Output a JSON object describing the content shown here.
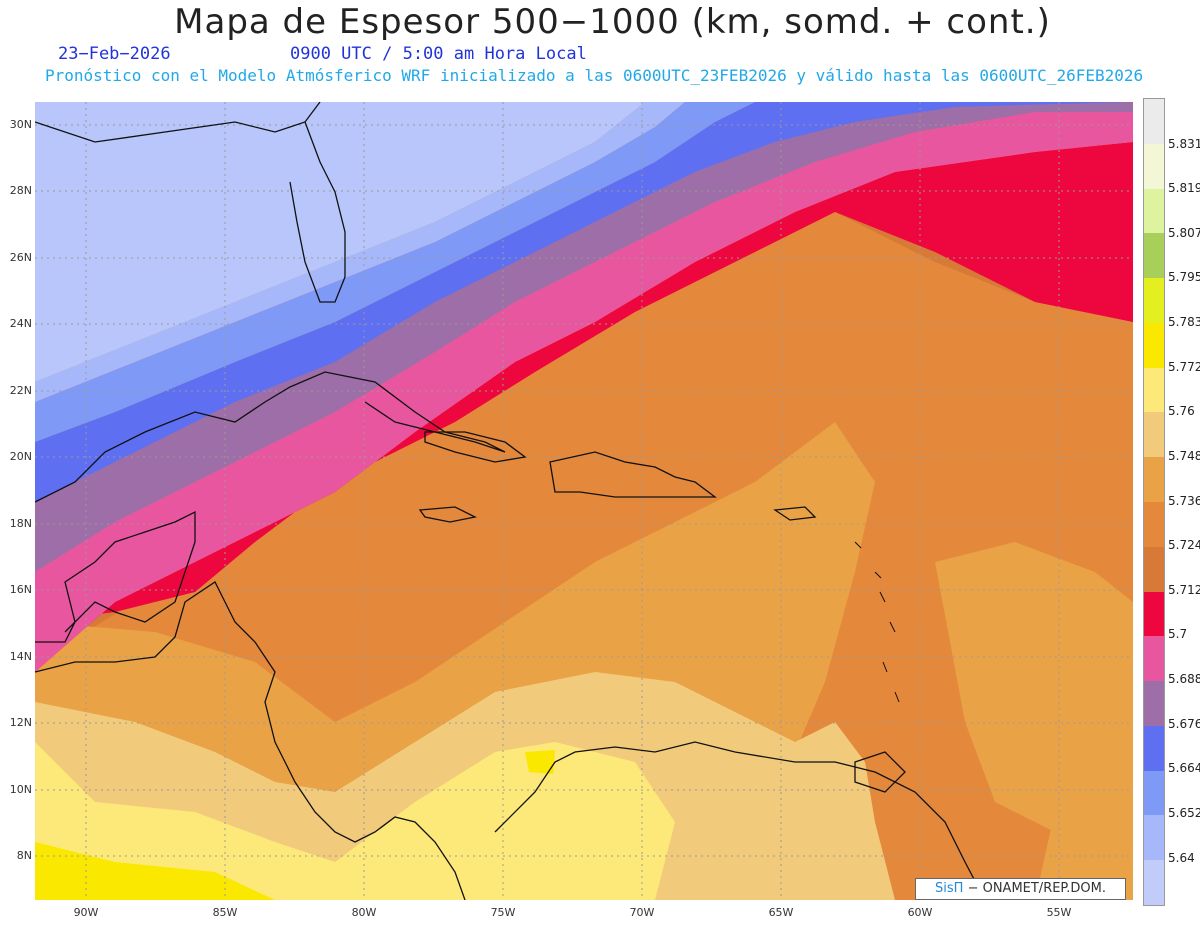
{
  "header": {
    "title": "Mapa de Espesor 500−1000 (km, somd. + cont.)",
    "date": "23−Feb−2026",
    "time": "0900 UTC / 5:00 am Hora Local",
    "subtitle": "Pronóstico con el Modelo Atmósferico WRF inicializado a las 0600UTC_23FEB2026 y válido hasta las  0600UTC_26FEB2026"
  },
  "axes": {
    "lat_labels": [
      "30N",
      "28N",
      "26N",
      "24N",
      "22N",
      "20N",
      "18N",
      "16N",
      "14N",
      "12N",
      "10N",
      "8N"
    ],
    "lon_labels": [
      "90W",
      "85W",
      "80W",
      "75W",
      "70W",
      "65W",
      "60W",
      "55W"
    ]
  },
  "credit": {
    "brand": "SisΠ",
    "text": "− ONAMET/REP.DOM."
  },
  "colorbar": {
    "labels": [
      "5.831",
      "5.819",
      "5.807",
      "5.795",
      "5.783",
      "5.772",
      "5.76",
      "5.748",
      "5.736",
      "5.724",
      "5.712",
      "5.7",
      "5.688",
      "5.676",
      "5.664",
      "5.652",
      "5.64"
    ],
    "colors": [
      "#ebebeb",
      "#f3f7d6",
      "#def3a0",
      "#a8cf5a",
      "#e3ef1f",
      "#fae800",
      "#fde97a",
      "#f1cb7b",
      "#e9a246",
      "#e4883c",
      "#d77937",
      "#ee063e",
      "#e956a0",
      "#9d6ea8",
      "#5f6ff2",
      "#7f99f6",
      "#a6b8f9",
      "#c2ccfb"
    ]
  }
}
